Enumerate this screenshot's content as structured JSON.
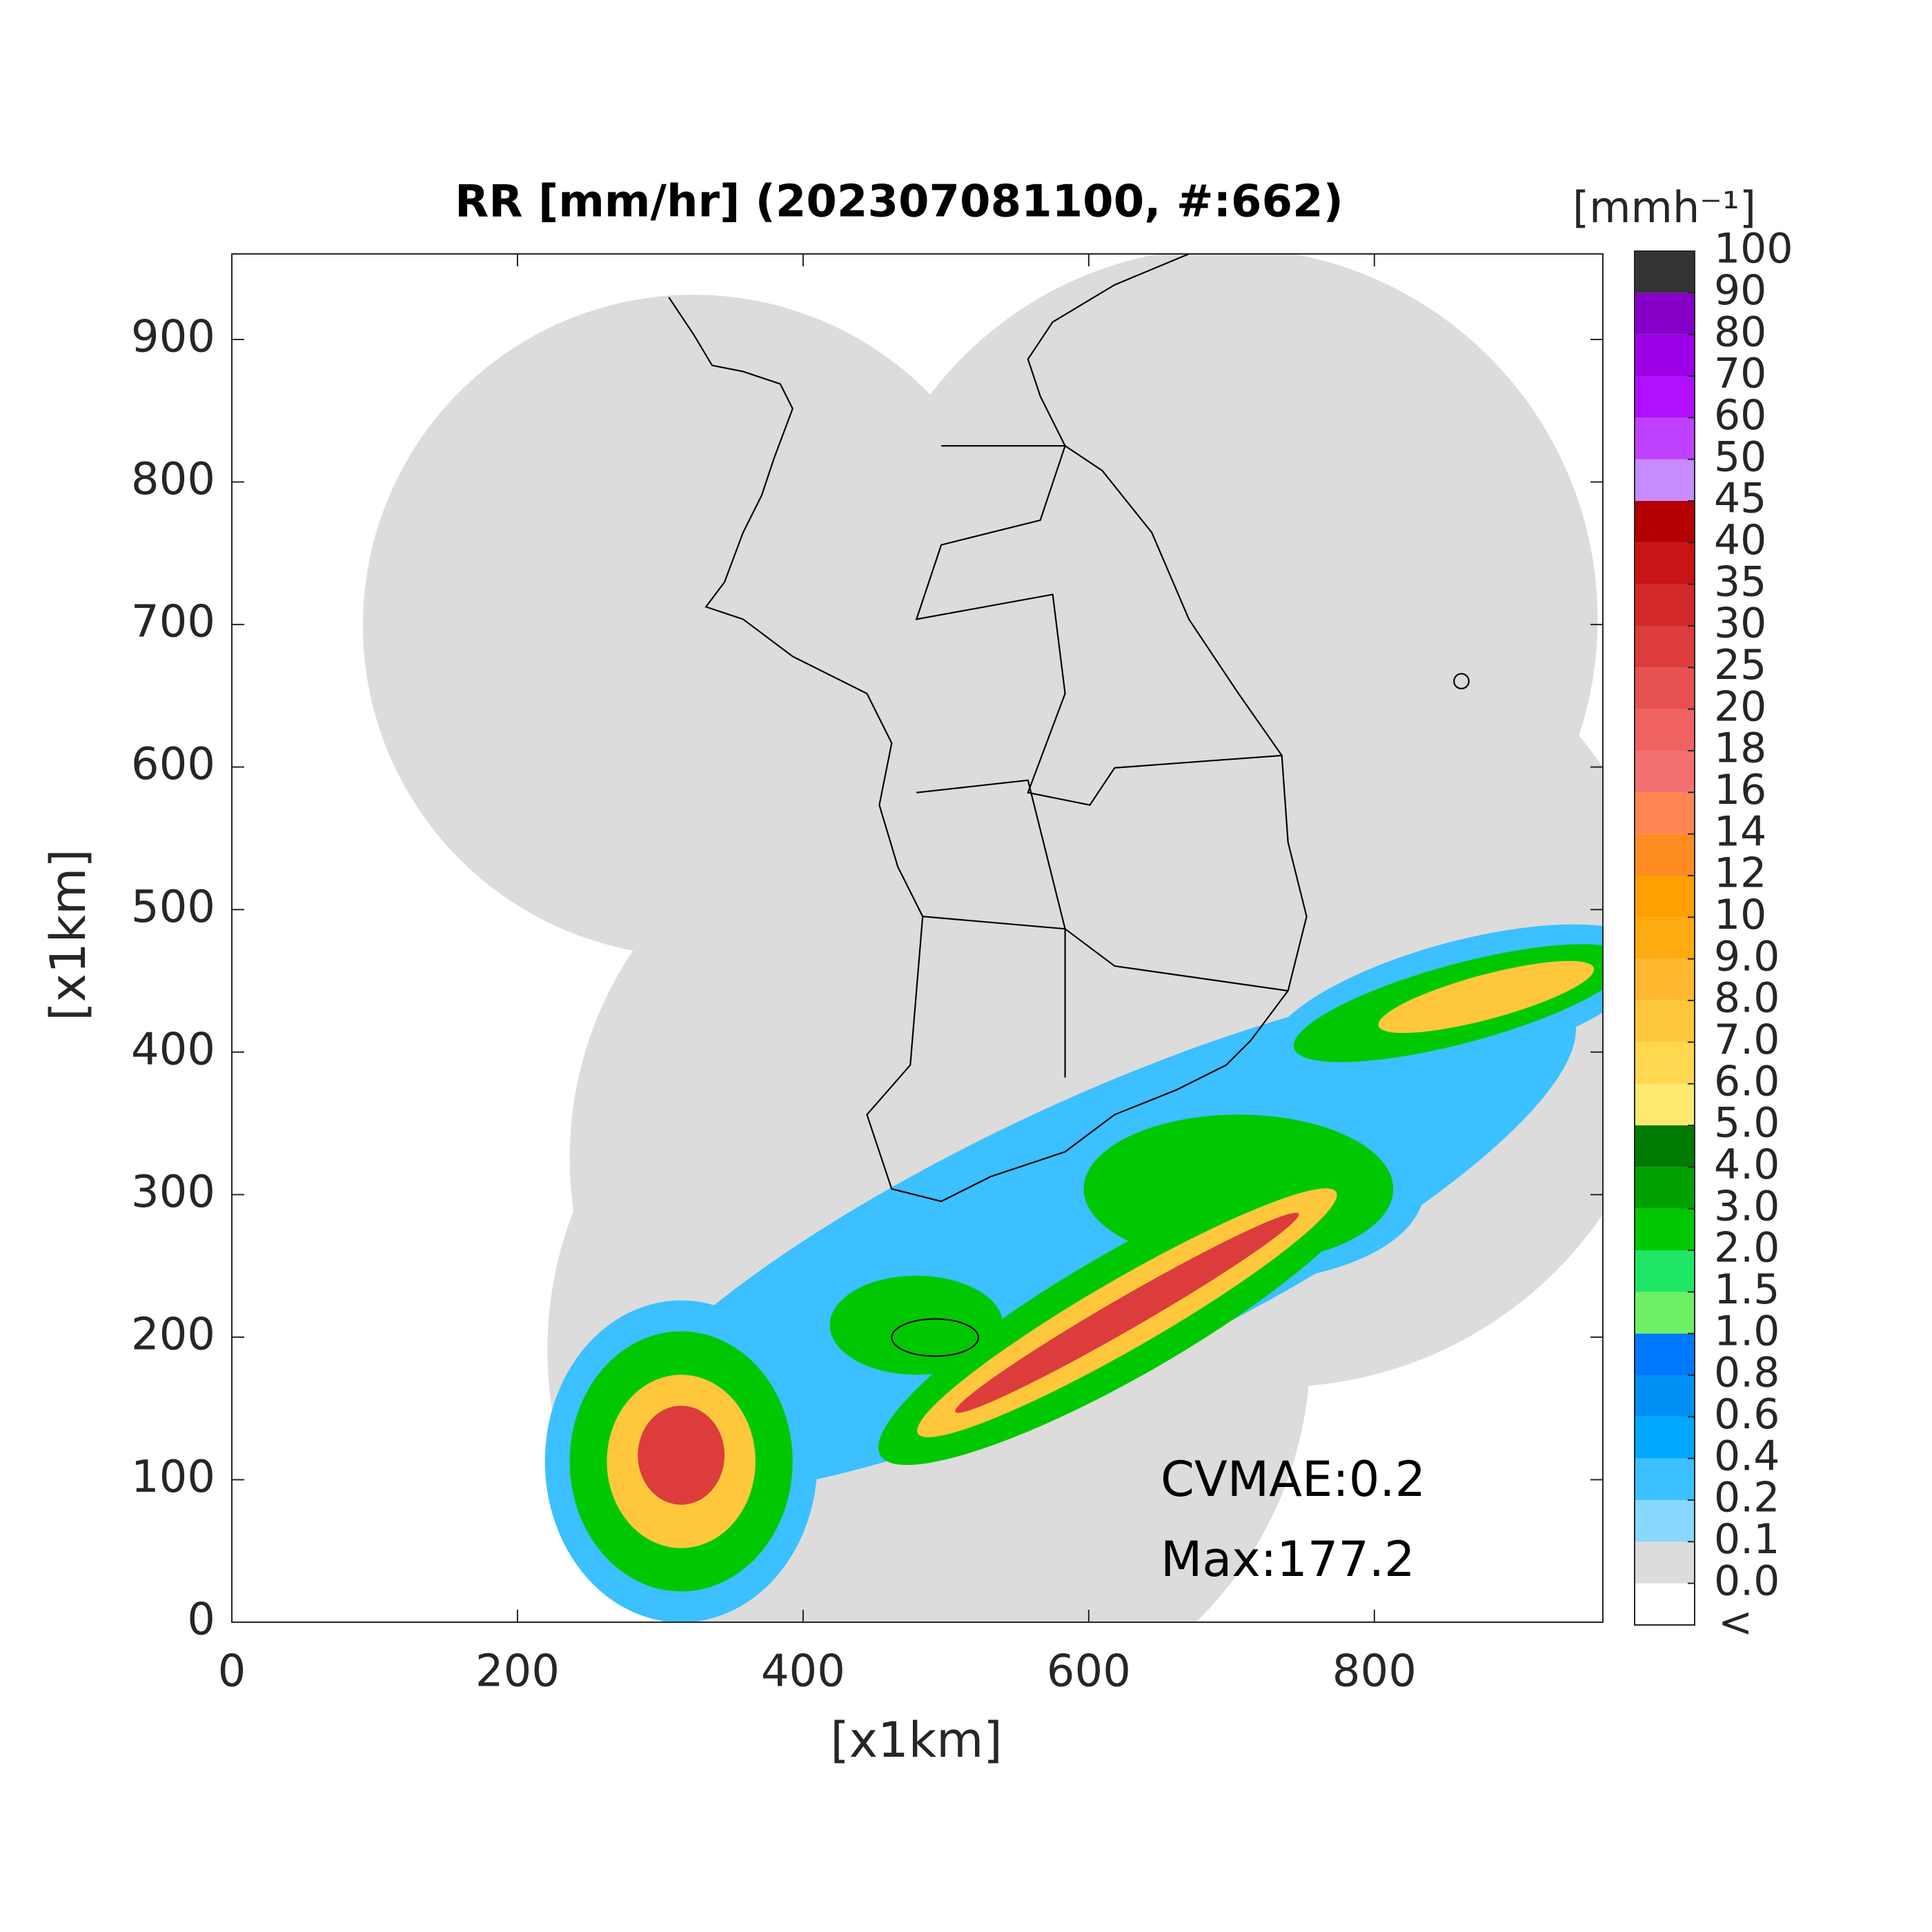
{
  "chart_data": {
    "type": "map",
    "title": "RR [mm/hr] (202307081100, #:662)",
    "xlabel": "[x1km]",
    "ylabel": "[x1km]",
    "xlim": [
      0,
      960
    ],
    "ylim": [
      0,
      960
    ],
    "xticks": [
      0,
      200,
      400,
      600,
      800
    ],
    "yticks": [
      0,
      100,
      200,
      300,
      400,
      500,
      600,
      700,
      800,
      900
    ],
    "annotations": [
      "CVMAE:0.2",
      "Max:177.2"
    ],
    "colorbar": {
      "label": "[mmh⁻¹]",
      "under_label": "<",
      "ticks": [
        {
          "value": 0,
          "label": "0.0"
        },
        0.1,
        0.2,
        0.4,
        0.6,
        0.8,
        {
          "value": 1,
          "label": "1.0"
        },
        1.5,
        {
          "value": 2,
          "label": "2.0"
        },
        {
          "value": 3,
          "label": "3.0"
        },
        {
          "value": 4,
          "label": "4.0"
        },
        {
          "value": 5,
          "label": "5.0"
        },
        {
          "value": 6,
          "label": "6.0"
        },
        {
          "value": 7,
          "label": "7.0"
        },
        {
          "value": 8,
          "label": "8.0"
        },
        {
          "value": 9,
          "label": "9.0"
        },
        10,
        12,
        14,
        16,
        18,
        20,
        25,
        30,
        35,
        40,
        45,
        50,
        60,
        70,
        80,
        90,
        100
      ],
      "colors": [
        "#ffffff",
        "#dcdcdc",
        "#88d8ff",
        "#3cc0ff",
        "#00a8ff",
        "#0090f5",
        "#0078ff",
        "#6ef064",
        "#1ee664",
        "#00c800",
        "#00a000",
        "#007a00",
        "#ffe86e",
        "#ffd850",
        "#ffc83c",
        "#ffb730",
        "#ffaa10",
        "#ffa000",
        "#ff8c20",
        "#ff8552",
        "#f57070",
        "#f06262",
        "#e65050",
        "#dc3c3c",
        "#d22828",
        "#c81414",
        "#b40000",
        "#c88aff",
        "#c040ff",
        "#b010ff",
        "#9c00e6",
        "#8600c8",
        "#333333"
      ]
    }
  }
}
